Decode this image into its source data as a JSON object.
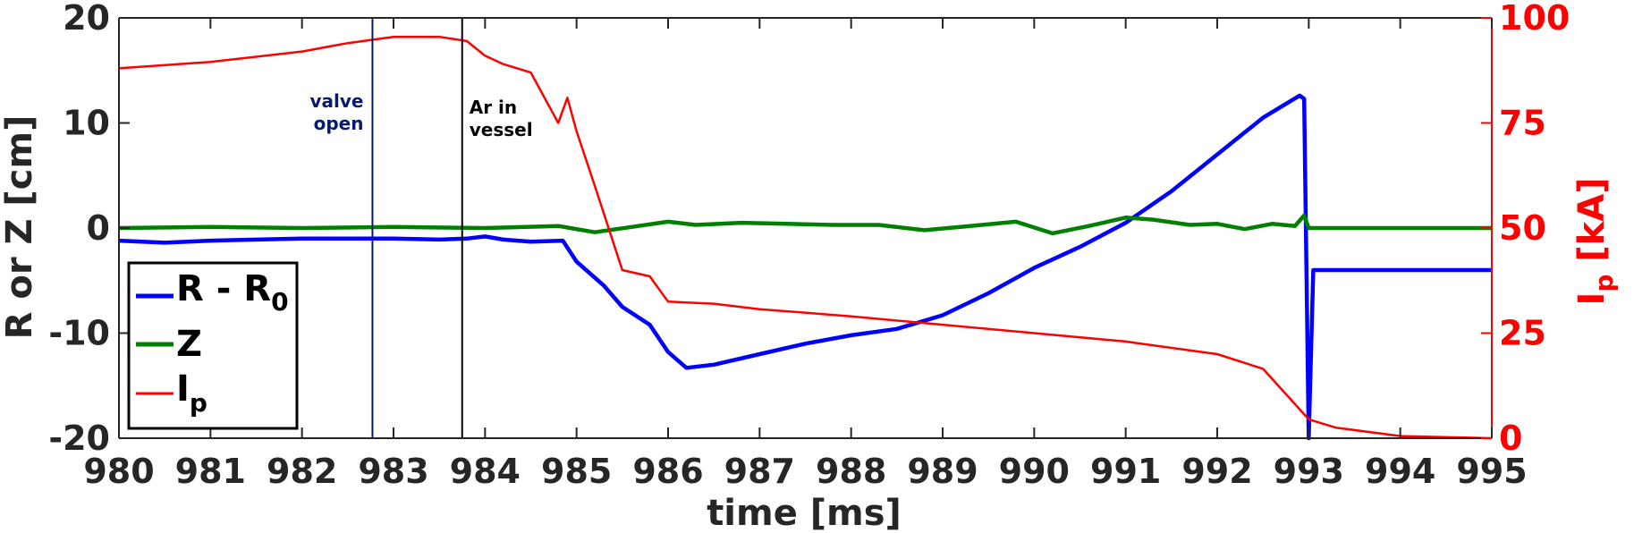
{
  "chart_data": {
    "type": "line",
    "xlabel": "time [ms]",
    "ylabel_left": "R or Z [cm]",
    "ylabel_right_main": "I",
    "ylabel_right_sub": "p",
    "ylabel_right_unit": " [kA]",
    "xlim": [
      980,
      995
    ],
    "ylim_left": [
      -20,
      20
    ],
    "ylim_right": [
      0,
      100
    ],
    "xticks": [
      980,
      981,
      982,
      983,
      984,
      985,
      986,
      987,
      988,
      989,
      990,
      991,
      992,
      993,
      994,
      995
    ],
    "yticks_left": [
      -20,
      -10,
      0,
      10,
      20
    ],
    "ytick_labels_left": [
      "-20",
      "-10",
      "0",
      "10",
      "20"
    ],
    "yticks_right": [
      0,
      25,
      50,
      75,
      100
    ],
    "ytick_labels_right": [
      "0",
      "25",
      "50",
      "75",
      "100"
    ],
    "grid": false,
    "legend_position": "bottom-left",
    "colors": {
      "R": "#0000ff",
      "Z": "#007f00",
      "Ip": "#ff0000",
      "valve": "#0a1a6b",
      "ar": "#000000",
      "right_axis": "#ff0000",
      "left_axis": "#262626"
    },
    "series": [
      {
        "key": "R",
        "name": "R - R",
        "name_sub": "0",
        "axis": "left",
        "color": "#0000ff",
        "x": [
          980,
          980.5,
          981,
          982,
          983,
          983.5,
          983.8,
          984.0,
          984.2,
          984.5,
          984.85,
          985.0,
          985.3,
          985.5,
          985.8,
          986.0,
          986.2,
          986.5,
          987,
          987.5,
          988,
          988.5,
          989,
          989.5,
          990,
          990.5,
          991,
          991.5,
          992,
          992.5,
          992.9,
          992.95,
          993.0,
          993.05,
          993.1,
          995
        ],
        "y": [
          -1.2,
          -1.4,
          -1.2,
          -1.0,
          -1.0,
          -1.1,
          -1.0,
          -0.8,
          -1.1,
          -1.3,
          -1.2,
          -3.2,
          -5.5,
          -7.5,
          -9.2,
          -11.8,
          -13.3,
          -13.0,
          -12.0,
          -11.0,
          -10.2,
          -9.6,
          -8.3,
          -6.2,
          -3.8,
          -1.8,
          0.5,
          3.5,
          7.0,
          10.5,
          12.6,
          12.3,
          -20,
          -4.0,
          -4.0,
          -4.0
        ]
      },
      {
        "key": "Z",
        "name": "Z",
        "axis": "left",
        "color": "#007f00",
        "x": [
          980,
          981,
          982,
          983,
          984,
          984.8,
          985.2,
          985.6,
          986.0,
          986.3,
          986.8,
          987.3,
          987.8,
          988.3,
          988.8,
          989.3,
          989.8,
          990.2,
          990.6,
          991.0,
          991.3,
          991.7,
          992.0,
          992.3,
          992.6,
          992.85,
          992.95,
          993.0,
          993.2,
          995
        ],
        "y": [
          0,
          0.1,
          0,
          0.1,
          0,
          0.2,
          -0.4,
          0.1,
          0.6,
          0.3,
          0.5,
          0.4,
          0.3,
          0.3,
          -0.2,
          0.2,
          0.6,
          -0.5,
          0.2,
          1.0,
          0.8,
          0.3,
          0.4,
          -0.1,
          0.4,
          0.2,
          1.2,
          0,
          0,
          0
        ]
      },
      {
        "key": "Ip",
        "name": "I",
        "name_sub": "p",
        "axis": "right",
        "color": "#ff0000",
        "x": [
          980,
          981,
          982,
          982.5,
          983,
          983.5,
          983.8,
          984.0,
          984.2,
          984.5,
          984.8,
          984.9,
          985.0,
          985.2,
          985.5,
          985.8,
          986.0,
          986.5,
          987,
          988,
          989,
          990,
          991,
          992,
          992.5,
          993,
          993.3,
          994,
          995
        ],
        "y": [
          88,
          89.5,
          92,
          94,
          95.5,
          95.5,
          94.5,
          91,
          89,
          87,
          75,
          81,
          73,
          60,
          40,
          38.5,
          32.5,
          32,
          30.7,
          29,
          27,
          25,
          23,
          20,
          16.5,
          4.5,
          2.5,
          0.5,
          0
        ]
      }
    ],
    "annotations": [
      {
        "x": 982.77,
        "color": "#0a1a6b",
        "lines": [
          "valve",
          "open"
        ]
      },
      {
        "x": 983.75,
        "color": "#000000",
        "lines": [
          "Ar in",
          "vessel"
        ]
      }
    ]
  }
}
